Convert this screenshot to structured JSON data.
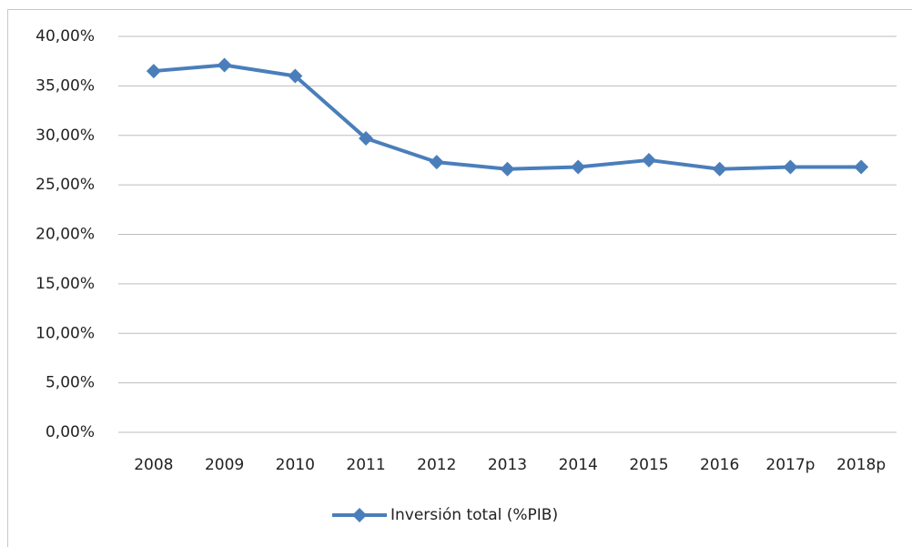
{
  "chart_data": {
    "type": "line",
    "categories": [
      "2008",
      "2009",
      "2010",
      "2011",
      "2012",
      "2013",
      "2014",
      "2015",
      "2016",
      "2017p",
      "2018p"
    ],
    "series": [
      {
        "name": "Inversión total (%PIB)",
        "color": "#4a7ebb",
        "values": [
          36.5,
          37.1,
          36.0,
          29.7,
          27.3,
          26.6,
          26.8,
          27.5,
          26.6,
          26.8,
          26.8
        ]
      }
    ],
    "ylim": [
      0,
      40
    ],
    "yticks": [
      {
        "value": 0,
        "label": "0,00%"
      },
      {
        "value": 5,
        "label": "5,00%"
      },
      {
        "value": 10,
        "label": "10,00%"
      },
      {
        "value": 15,
        "label": "15,00%"
      },
      {
        "value": 20,
        "label": "20,00%"
      },
      {
        "value": 25,
        "label": "25,00%"
      },
      {
        "value": 30,
        "label": "30,00%"
      },
      {
        "value": 35,
        "label": "35,00%"
      },
      {
        "value": 40,
        "label": "40,00%"
      }
    ],
    "grid": true,
    "legend": "bottom"
  }
}
